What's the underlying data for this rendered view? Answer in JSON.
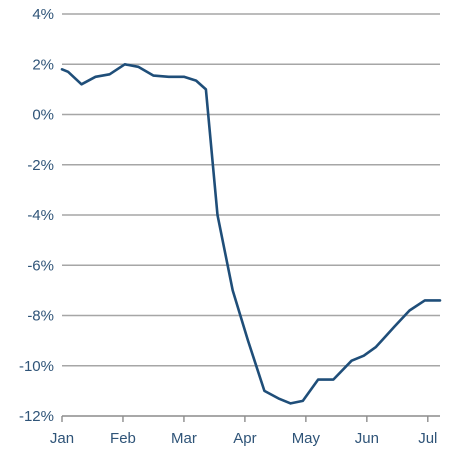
{
  "chart_data": {
    "type": "line",
    "title": "",
    "xlabel": "",
    "ylabel": "",
    "grid": true,
    "ylim": [
      -12,
      4
    ],
    "yticks": [
      4,
      2,
      0,
      -2,
      -4,
      -6,
      -8,
      -10,
      -12
    ],
    "ytick_labels": [
      "4%",
      "2%",
      "0%",
      "-2%",
      "-4%",
      "-6%",
      "-8%",
      "-10%",
      "-12%"
    ],
    "xlim": [
      0,
      6.2
    ],
    "xticks": [
      0,
      1,
      2,
      3,
      4,
      5,
      6
    ],
    "xtick_labels": [
      "Jan",
      "Feb",
      "Mar",
      "Apr",
      "May",
      "Jun",
      "Jul"
    ],
    "line_color": "#1f4e79",
    "series": [
      {
        "x": [
          0.0,
          0.1,
          0.32,
          0.55,
          0.78,
          1.03,
          1.25,
          1.5,
          1.75,
          2.0,
          2.2,
          2.36,
          2.55,
          2.8,
          3.05,
          3.32,
          3.55,
          3.75,
          3.95,
          4.2,
          4.45,
          4.75,
          4.95,
          5.15,
          5.45,
          5.7,
          5.95,
          6.1,
          6.2
        ],
        "y": [
          1.8,
          1.7,
          1.2,
          1.5,
          1.6,
          2.0,
          1.9,
          1.55,
          1.5,
          1.5,
          1.35,
          1.0,
          -4.0,
          -7.0,
          -9.0,
          -11.0,
          -11.3,
          -11.5,
          -11.4,
          -10.55,
          -10.55,
          -9.8,
          -9.6,
          -9.25,
          -8.45,
          -7.8,
          -7.4,
          -7.4,
          -7.4
        ]
      }
    ]
  }
}
